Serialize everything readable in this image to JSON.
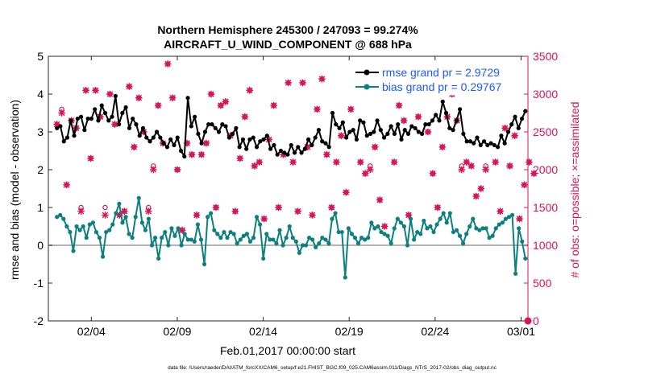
{
  "chart_data": {
    "type": "line",
    "title_line1": "Northern Hemisphere 245300 / 247093 = 99.274%",
    "title_line2": "AIRCRAFT_U_WIND_COMPONENT @ 688 hPa",
    "xlabel": "Feb.01,2017 00:00:00 start",
    "ylabel": "rmse and bias (model - observation)",
    "y2label": "# of obs: o=possible; ×=assimilated",
    "x_tick_labels": [
      "02/04",
      "02/09",
      "02/14",
      "02/19",
      "02/24",
      "03/01"
    ],
    "x_tick_days": [
      3,
      8,
      13,
      18,
      23,
      28
    ],
    "xlim": [
      0.5,
      28.4
    ],
    "ylim": [
      -2,
      5
    ],
    "y_ticks": [
      "-2",
      "-1",
      "0",
      "1",
      "2",
      "3",
      "4",
      "5"
    ],
    "y2lim": [
      0,
      3500
    ],
    "y2_ticks": [
      "0",
      "500",
      "1000",
      "1500",
      "2000",
      "2500",
      "3000",
      "3500"
    ],
    "legend": [
      "rmse grand pr = 2.9729",
      "bias grand pr = 0.29767"
    ],
    "colors": {
      "rmse": "#000000",
      "bias": "#0e7f80",
      "obs": "#d6145a",
      "legend_text": "#1a5aff",
      "zero_line": "#b3b3b3"
    },
    "series": [
      {
        "name": "rmse",
        "values": [
          3.1,
          3.15,
          2.75,
          2.85,
          3.3,
          2.9,
          3.35,
          3.4,
          3.05,
          3.35,
          3.35,
          3.6,
          3.3,
          3.7,
          3.5,
          3.3,
          3.4,
          3.95,
          3.2,
          3.5,
          3.65,
          3.1,
          3.35,
          3.2,
          2.9,
          3.1,
          2.85,
          2.75,
          2.85,
          3.0,
          2.85,
          2.7,
          2.6,
          2.8,
          2.65,
          2.85,
          2.5,
          2.35,
          3.9,
          3.15,
          3.4,
          2.95,
          2.7,
          3.0,
          3.2,
          3.2,
          3.1,
          3.0,
          3.2,
          3.15,
          2.85,
          2.95,
          3.1,
          2.6,
          2.8,
          2.55,
          2.8,
          2.85,
          2.6,
          2.75,
          2.8,
          2.9,
          2.55,
          2.65,
          2.4,
          2.5,
          2.45,
          2.4,
          2.65,
          2.45,
          2.6,
          2.45,
          2.55,
          2.8,
          2.65,
          2.85,
          3.05,
          2.75,
          2.7,
          2.6,
          3.5,
          3.2,
          3.1,
          3.25,
          2.85,
          3.0,
          3.05,
          2.8,
          3.3,
          3.25,
          2.9,
          2.95,
          3.0,
          3.3,
          3.05,
          2.85,
          2.95,
          3.15,
          2.95,
          3.2,
          2.8,
          3.05,
          2.95,
          3.15,
          3.1,
          3.0,
          2.95,
          3.2,
          3.2,
          3.3,
          3.45,
          3.3,
          3.8,
          3.5,
          3.1,
          3.05,
          3.3,
          3.6,
          2.95,
          2.75,
          2.75,
          2.7,
          2.85,
          2.65,
          2.75,
          2.65,
          2.7,
          2.65,
          2.6,
          2.9,
          2.7,
          3.0,
          3.2,
          3.4,
          3.1,
          3.35,
          3.55
        ]
      },
      {
        "name": "bias",
        "values": [
          0.75,
          0.8,
          0.7,
          0.5,
          0.35,
          -0.15,
          0.5,
          0.4,
          0.5,
          0.2,
          0.55,
          0.6,
          0.35,
          0.2,
          -0.3,
          0.35,
          0.4,
          0.55,
          0.85,
          1.1,
          0.6,
          0.75,
          0.3,
          0.2,
          0.75,
          1.25,
          0.6,
          0.4,
          0.7,
          0.0,
          0.2,
          -0.35,
          0.2,
          0.35,
          0.0,
          0.45,
          0.25,
          0.45,
          0.0,
          0.3,
          0.15,
          0.15,
          0.1,
          0.55,
          0.15,
          -0.5,
          0.75,
          0.85,
          0.4,
          0.3,
          0.2,
          0.35,
          0.2,
          0.35,
          0.3,
          0.05,
          0.15,
          0.25,
          0.3,
          0.1,
          0.2,
          0.75,
          0.55,
          -0.35,
          0.3,
          0.15,
          0.15,
          0.05,
          0.4,
          0.0,
          0.2,
          0.5,
          0.2,
          0.1,
          -0.2,
          0.0,
          0.0,
          0.2,
          0.15,
          -0.05,
          0.05,
          0.2,
          0.15,
          0.05,
          0.7,
          0.85,
          0.35,
          0.35,
          -0.85,
          0.45,
          0.3,
          0.2,
          0.05,
          0.2,
          0.15,
          0.2,
          0.6,
          0.45,
          0.5,
          0.35,
          0.3,
          0.25,
          0.05,
          0.45,
          0.7,
          0.6,
          0.5,
          0.0,
          0.7,
          0.15,
          0.35,
          0.3,
          0.65,
          0.45,
          0.5,
          0.35,
          0.55,
          0.7,
          0.85,
          0.6,
          0.85,
          0.35,
          0.4,
          0.25,
          0.05,
          0.3,
          0.5,
          0.7,
          0.45,
          0.4,
          0.45,
          0.45,
          0.2,
          0.25,
          0.45,
          0.55,
          0.6,
          0.7,
          0.75,
          0.8,
          -0.75,
          0.45,
          0.1,
          -0.35
        ]
      }
    ],
    "obs_possible": [
      2600,
      2800,
      1800,
      2650,
      2550,
      1500,
      3050,
      2150,
      3050,
      2700,
      1500,
      3000,
      2600,
      1400,
      1450,
      3100,
      2300,
      2950,
      2500,
      1500,
      2050,
      2850,
      2350,
      3400,
      2950,
      2000,
      1200,
      2350,
      2200,
      1400,
      2200,
      2350,
      3000,
      1500,
      2850,
      2900,
      2450,
      1450,
      2150,
      2700,
      3050,
      2050,
      2100,
      1350,
      2400,
      2850,
      1500,
      2200,
      3150,
      2100,
      1450,
      3150,
      2300,
      1400,
      2800,
      3200,
      2200,
      1500,
      2100,
      2450,
      1700,
      2800,
      3050,
      2100,
      1950,
      2050,
      2300,
      1600,
      1250,
      3050,
      2100,
      2850,
      2650,
      1400,
      3050,
      2700,
      3200,
      2500,
      1950,
      1500,
      2300,
      2700,
      3000,
      2650,
      2050,
      2100,
      2050,
      1650,
      1750,
      2050,
      3050,
      2100,
      1450,
      2550,
      2050,
      2450,
      1350,
      1800,
      2100,
      1950
    ],
    "obs_assimilated": [
      2600,
      2750,
      1800,
      2650,
      2550,
      1450,
      3050,
      2150,
      3050,
      2700,
      1400,
      3000,
      2600,
      1400,
      1450,
      3100,
      2300,
      2950,
      2500,
      1450,
      2000,
      2850,
      2350,
      3400,
      2950,
      2000,
      1200,
      2350,
      2200,
      1400,
      2200,
      2350,
      3000,
      1500,
      2850,
      2900,
      2450,
      1450,
      2150,
      2700,
      3050,
      2050,
      2100,
      1350,
      2400,
      2850,
      1500,
      2200,
      3150,
      2100,
      1450,
      3150,
      2300,
      1400,
      2800,
      3200,
      2200,
      1500,
      2100,
      2450,
      1700,
      2800,
      3050,
      2100,
      1950,
      2000,
      2300,
      1600,
      1250,
      3050,
      2100,
      2850,
      2650,
      1400,
      3050,
      2700,
      3200,
      2500,
      1950,
      1500,
      2300,
      2700,
      3000,
      2650,
      2000,
      2100,
      2050,
      1650,
      1750,
      2000,
      3050,
      2100,
      1450,
      2550,
      2050,
      2450,
      1350,
      1800,
      2100,
      1950
    ],
    "obs_final": 0
  },
  "footer": "data file: /Users/raeder/DAI/ATM_forcXX/CAM6_setup/f.e21.FHIST_BGC.f09_025.CAM6assim.011/Diags_NTrS_2017-02/obs_diag_output.nc"
}
